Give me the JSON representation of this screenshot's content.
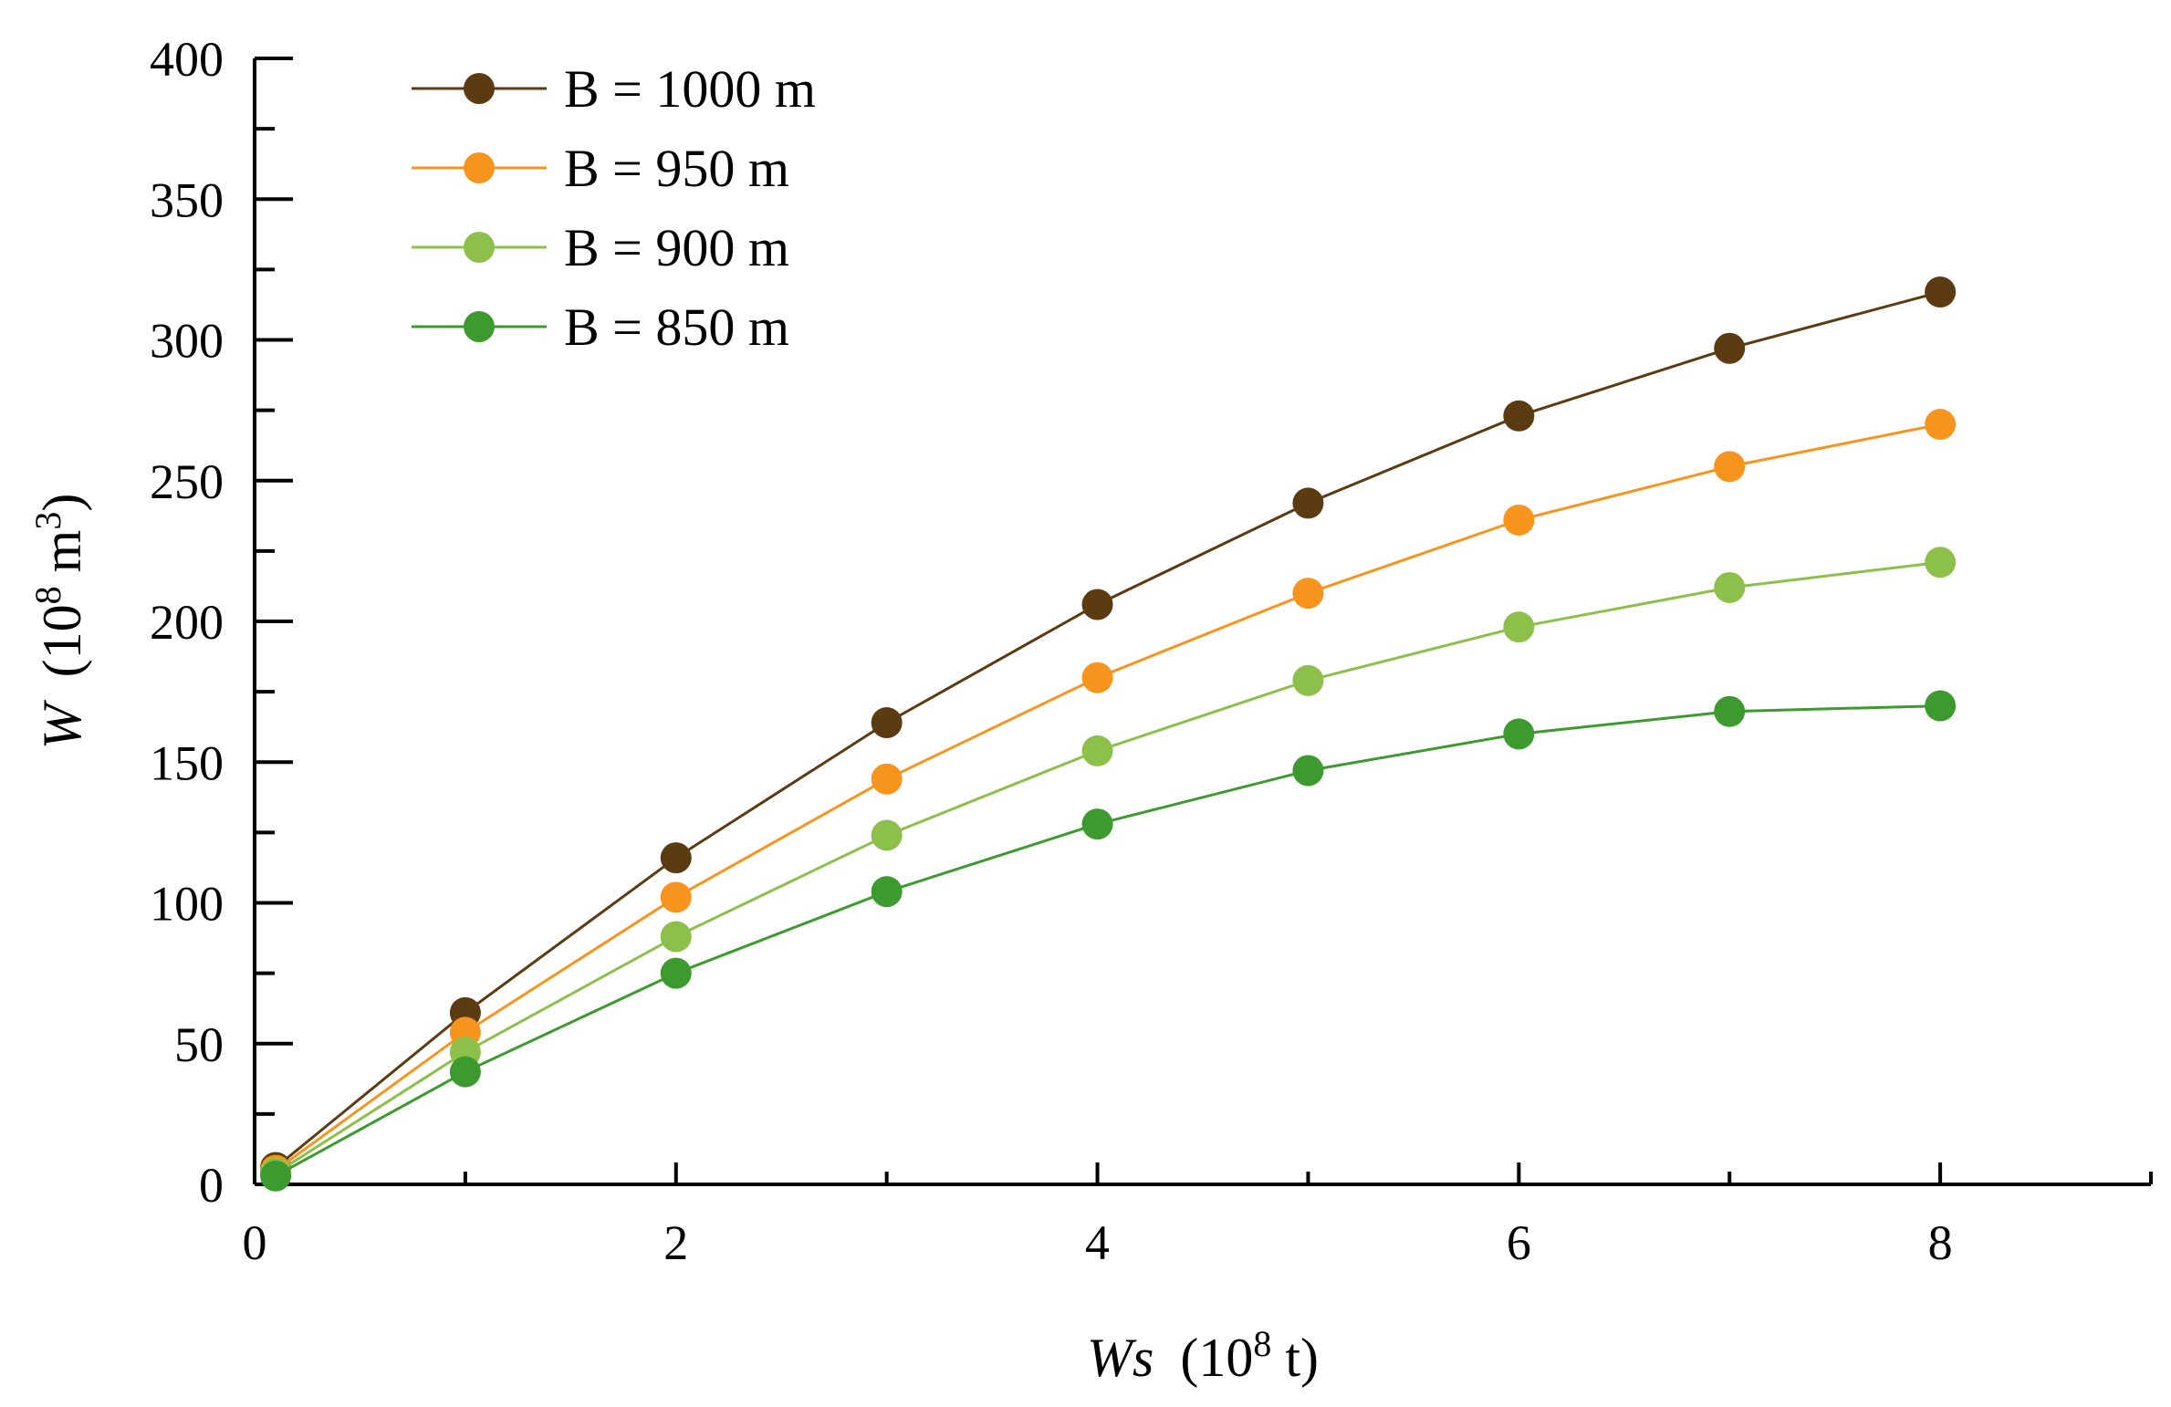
{
  "chart_data": {
    "type": "line",
    "title": "",
    "xlabel": {
      "var": "Ws",
      "open": "(10",
      "exp": "8",
      "unit": " t)"
    },
    "ylabel": {
      "var": "W",
      "open": "(10",
      "exp": "8",
      "unit": " m",
      "unit_exp": "3",
      "close": ")"
    },
    "xlim": [
      0,
      9
    ],
    "ylim": [
      0,
      400
    ],
    "x_major_ticks": [
      0,
      2,
      4,
      6,
      8
    ],
    "x_tick_labels": [
      "0",
      "2",
      "4",
      "6",
      "8"
    ],
    "x_minor_ticks": [
      1,
      3,
      5,
      7,
      9
    ],
    "y_major_ticks": [
      0,
      50,
      100,
      150,
      200,
      250,
      300,
      350,
      400
    ],
    "y_tick_labels": [
      "0",
      "50",
      "100",
      "150",
      "200",
      "250",
      "300",
      "350",
      "400"
    ],
    "y_minor_ticks": [
      25,
      75,
      125,
      175,
      225,
      275,
      325,
      375
    ],
    "grid": false,
    "legend_position": "top-left",
    "x": [
      0.1,
      1,
      2,
      3,
      4,
      5,
      6,
      7,
      8
    ],
    "series": [
      {
        "name": "B = 1000 m",
        "color": "#5c3a12",
        "values": [
          6,
          61,
          116,
          164,
          206,
          242,
          273,
          297,
          317
        ]
      },
      {
        "name": "B = 950 m",
        "color": "#f7941d",
        "values": [
          5,
          54,
          102,
          144,
          180,
          210,
          236,
          255,
          270
        ]
      },
      {
        "name": "B = 900 m",
        "color": "#8dc04a",
        "values": [
          4,
          47,
          88,
          124,
          154,
          179,
          198,
          212,
          221
        ]
      },
      {
        "name": "B = 850 m",
        "color": "#3d9a2e",
        "values": [
          3,
          40,
          75,
          104,
          128,
          147,
          160,
          168,
          170
        ]
      }
    ]
  }
}
